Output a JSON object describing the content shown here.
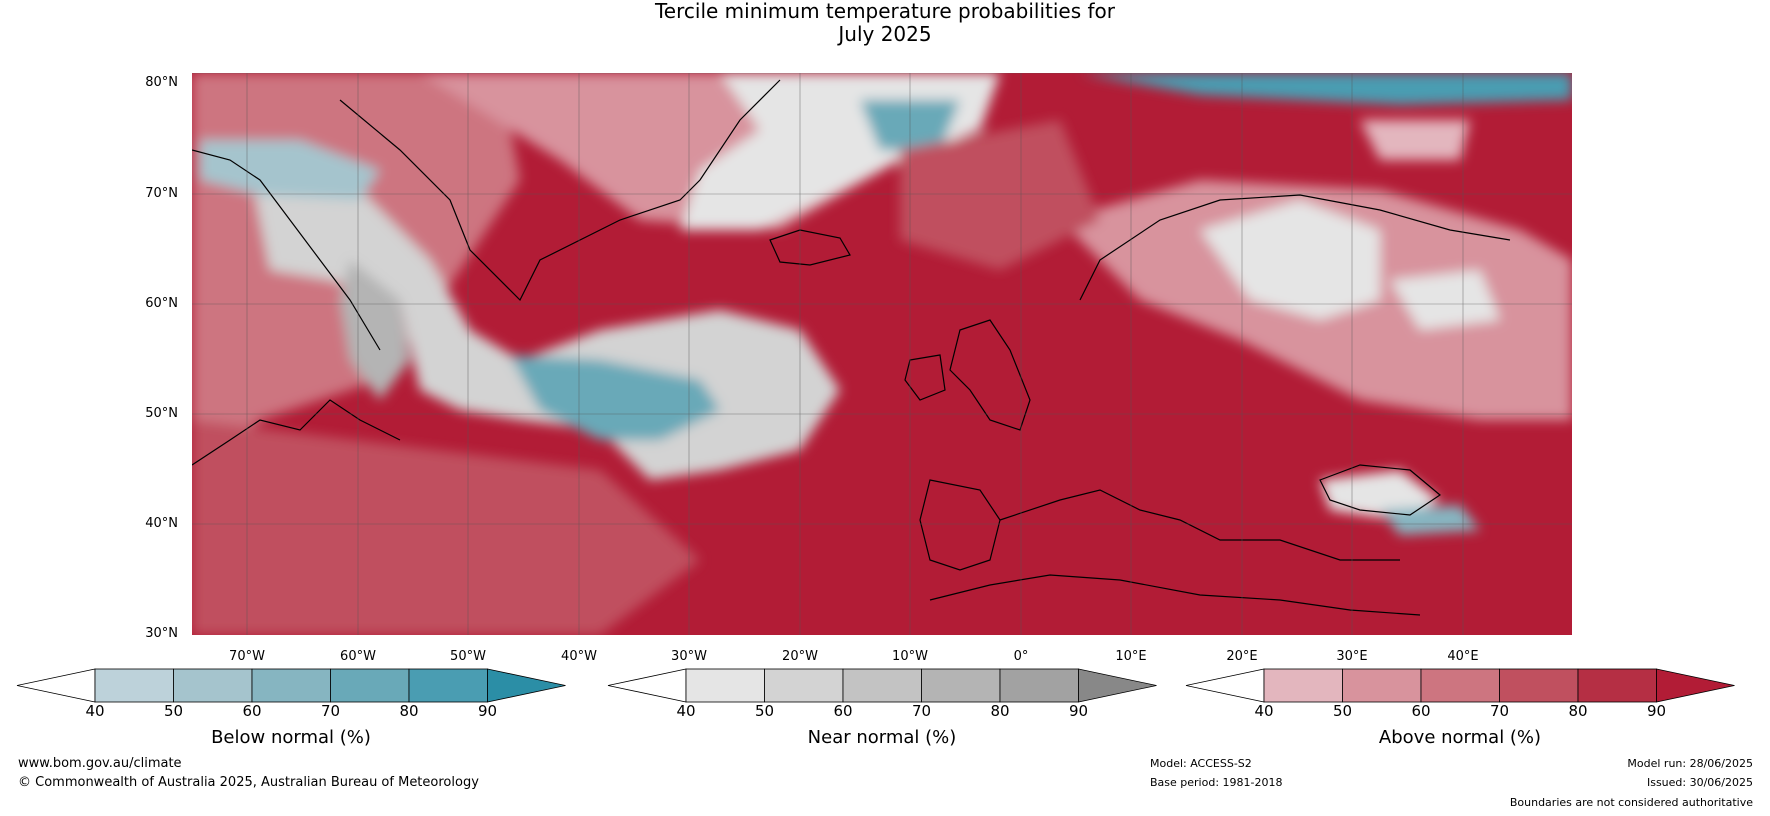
{
  "title": {
    "line1": "Tercile minimum temperature probabilities for",
    "line2": "July 2025"
  },
  "map": {
    "latitude_labels": [
      "80°N",
      "70°N",
      "60°N",
      "50°N",
      "40°N",
      "30°N"
    ],
    "longitude_labels": [
      "70°W",
      "60°W",
      "50°W",
      "40°W",
      "30°W",
      "20°W",
      "10°W",
      "0°",
      "10°E",
      "20°E",
      "30°E",
      "40°E"
    ],
    "gridlines": true
  },
  "colorbars": [
    {
      "label": "Below normal (%)",
      "ticks": [
        "40",
        "50",
        "60",
        "70",
        "80",
        "90"
      ],
      "colors": [
        "#ffffff",
        "#bdd2da",
        "#a5c4cd",
        "#86b5c1",
        "#69a9b8",
        "#4a9db2",
        "#2b8ea6"
      ]
    },
    {
      "label": "Near normal (%)",
      "ticks": [
        "40",
        "50",
        "60",
        "70",
        "80",
        "90"
      ],
      "colors": [
        "#ffffff",
        "#e5e5e5",
        "#d3d3d3",
        "#c3c3c3",
        "#b4b4b4",
        "#a2a2a2",
        "#888888"
      ]
    },
    {
      "label": "Above normal (%)",
      "ticks": [
        "40",
        "50",
        "60",
        "70",
        "80",
        "90"
      ],
      "colors": [
        "#ffffff",
        "#e3b6be",
        "#d8939d",
        "#cd7580",
        "#c0505f",
        "#b52f44",
        "#b21c36"
      ]
    }
  ],
  "footer": {
    "website": "www.bom.gov.au/climate",
    "copyright": "© Commonwealth of Australia 2025, Australian Bureau of Meteorology",
    "model": "Model: ACCESS-S2",
    "base_period": "Base period: 1981-2018",
    "model_run": "Model run: 28/06/2025",
    "issued": "Issued: 30/06/2025",
    "disclaimer": "Boundaries are not considered authoritative"
  }
}
